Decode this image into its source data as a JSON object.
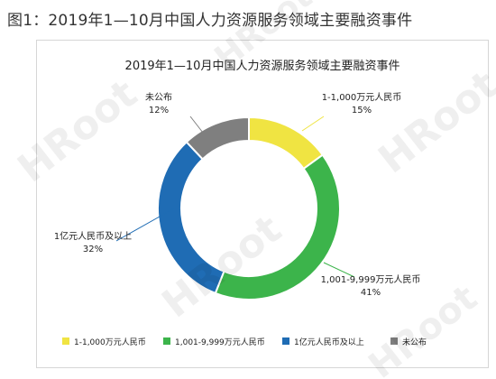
{
  "figure_caption": "图1：2019年1—10月中国人力资源服务领域主要融资事件",
  "watermark_text": "HRoot",
  "chart_data": {
    "type": "pie",
    "donut": true,
    "title": "2019年1—10月中国人力资源服务领域主要融资事件",
    "legend_position": "bottom",
    "slices": [
      {
        "label": "1-1,000万元人民币",
        "value": 15,
        "value_label": "15%",
        "color": "#f0e442"
      },
      {
        "label": "1,001-9,999万元人民币",
        "value": 41,
        "value_label": "41%",
        "color": "#3cb44b"
      },
      {
        "label": "1亿元人民币及以上",
        "value": 32,
        "value_label": "32%",
        "color": "#1f6cb4"
      },
      {
        "label": "未公布",
        "value": 12,
        "value_label": "12%",
        "color": "#7f7f7f"
      }
    ]
  }
}
